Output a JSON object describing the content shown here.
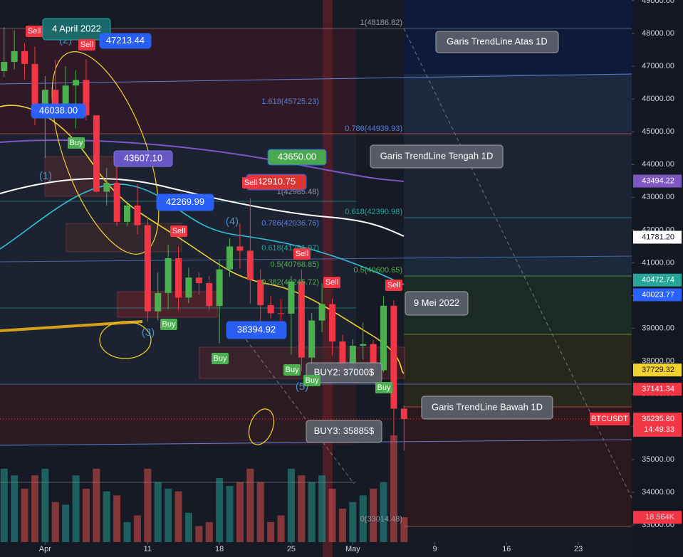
{
  "chart_data": {
    "type": "candlestick",
    "symbol": "BTCUSDT",
    "open": [
      46850,
      47130,
      47460,
      47070,
      45540,
      46280,
      45810,
      46410,
      46580,
      45500,
      43170,
      43440,
      42250,
      42750,
      42150,
      39520,
      40080,
      41140,
      39940,
      40550,
      40380,
      39680,
      40800,
      41500,
      41370,
      40480,
      39710,
      39460,
      39450,
      40430,
      38110,
      39240,
      39740,
      38600,
      37630,
      38470,
      38520,
      37720,
      39690,
      36550
    ],
    "high": [
      48190,
      48100,
      47700,
      47600,
      46700,
      47200,
      47000,
      46880,
      47213.44,
      45500,
      43900,
      43970,
      42800,
      43400,
      42400,
      40700,
      41550,
      41500,
      40850,
      40700,
      40600,
      41100,
      41750,
      42200,
      42970,
      40800,
      39980,
      39900,
      40600,
      40800,
      39470,
      40370,
      39900,
      38800,
      38670,
      39170,
      38650,
      39980,
      39850,
      36650
    ],
    "low": [
      46660,
      46900,
      46600,
      45200,
      44200,
      45600,
      45600,
      45100,
      45350,
      43150,
      42750,
      42120,
      42130,
      41870,
      39200,
      39250,
      39580,
      39550,
      39770,
      40020,
      39550,
      38540,
      40570,
      40820,
      39750,
      39170,
      39300,
      38940,
      38200,
      37700,
      37880,
      38880,
      38180,
      37580,
      37390,
      38050,
      37520,
      37670,
      35570,
      35270
    ],
    "close": [
      47130,
      47460,
      47070,
      45540,
      46280,
      45810,
      46410,
      46580,
      45500,
      43170,
      43440,
      42250,
      42750,
      42150,
      39520,
      40080,
      41140,
      39940,
      40550,
      40380,
      39680,
      40800,
      41500,
      41370,
      40480,
      39710,
      39460,
      39450,
      40430,
      38110,
      39240,
      39740,
      38600,
      37630,
      38470,
      38520,
      37720,
      39690,
      36550,
      36235.8
    ],
    "up_color": "#4caf50",
    "down_color": "#f23645",
    "volume": [
      55,
      50,
      40,
      50,
      55,
      30,
      28,
      50,
      40,
      55,
      38,
      35,
      15,
      20,
      55,
      45,
      40,
      38,
      22,
      12,
      15,
      48,
      42,
      45,
      55,
      45,
      15,
      20,
      55,
      50,
      45,
      50,
      40,
      25,
      30,
      35,
      40,
      45,
      80,
      18.564
    ],
    "volume_ylim": [
      0,
      80
    ],
    "volume_label": {
      "value": 18.564,
      "label": "18.564K"
    },
    "xlim": [
      -0.4,
      61.2
    ],
    "xticks": [
      {
        "value": 4,
        "label": "Apr"
      },
      {
        "value": 14,
        "label": "11"
      },
      {
        "value": 21,
        "label": "18"
      },
      {
        "value": 28,
        "label": "25"
      },
      {
        "value": 34,
        "label": "May"
      },
      {
        "value": 42,
        "label": "9"
      },
      {
        "value": 49,
        "label": "16"
      },
      {
        "value": 56,
        "label": "23"
      }
    ],
    "ylim": [
      32023,
      49020
    ],
    "yticks": [
      {
        "value": 49000,
        "label": "49000.00"
      },
      {
        "value": 48000,
        "label": "48000.00"
      },
      {
        "value": 47000,
        "label": "47000.00"
      },
      {
        "value": 46000,
        "label": "46000.00"
      },
      {
        "value": 45000,
        "label": "45000.00"
      },
      {
        "value": 44000,
        "label": "44000.00"
      },
      {
        "value": 43000,
        "label": "43000.00"
      },
      {
        "value": 42000,
        "label": "42000.00"
      },
      {
        "value": 41000,
        "label": "41000.00"
      },
      {
        "value": 40000,
        "label": "40000.00"
      },
      {
        "value": 39000,
        "label": "39000.00"
      },
      {
        "value": 38000,
        "label": "38000.00"
      },
      {
        "value": 37000,
        "label": "37000.00"
      },
      {
        "value": 36000,
        "label": "36000.00"
      },
      {
        "value": 35000,
        "label": "35000.00"
      },
      {
        "value": 34000,
        "label": "34000.00"
      },
      {
        "value": 33000,
        "label": "33000.00"
      }
    ],
    "price_labels": [
      {
        "value": 43494.22,
        "color": "#7e57c2"
      },
      {
        "value": 41781.2,
        "label": "41781.20",
        "color": "#ffffff"
      },
      {
        "value": 40472.74,
        "color": "#26a69a"
      },
      {
        "value": 40023.77,
        "color": "#2962ff"
      },
      {
        "value": 37729.32,
        "color": "#f2d22e"
      },
      {
        "value": 37141.34,
        "color": "#f23645"
      }
    ],
    "last_price": {
      "value": 36235.8,
      "label": "36235.80",
      "countdown": "14:49:33",
      "color": "#f23645"
    },
    "annotations": [
      "4 April 2022",
      "47213.44",
      "46038.00",
      "43607.10",
      "42269.99",
      "43650.00",
      "42910.75",
      "38394.92",
      "Garis TrendLine Atas 1D",
      "Garis TrendLine Tengah 1D",
      "9 Mei 2022",
      "Garis TrendLine Bawah 1D",
      "BUY2: 37000$",
      "BUY3: 35885$"
    ],
    "signals": [
      "Sell",
      "Sell",
      "Buy",
      "Sell",
      "Buy",
      "Sell",
      "Sell",
      "Sell",
      "Buy",
      "Buy",
      "Buy",
      "Sell",
      "Buy"
    ],
    "waves": [
      "(1)",
      "(2)",
      "(3)",
      "(4)",
      "(5)"
    ],
    "fib_labels": [
      "1(48186.82)",
      "1.618(45725.23)",
      "0.786(44939.93)",
      "1(42985.48)",
      "0.618(42390.98)",
      "0.786(42036.76)",
      "0.618(41291.97)",
      "0.5(40768.85)",
      "0.5(40600.65)",
      "0.382(40245.72)",
      "0(33014.48)"
    ]
  }
}
